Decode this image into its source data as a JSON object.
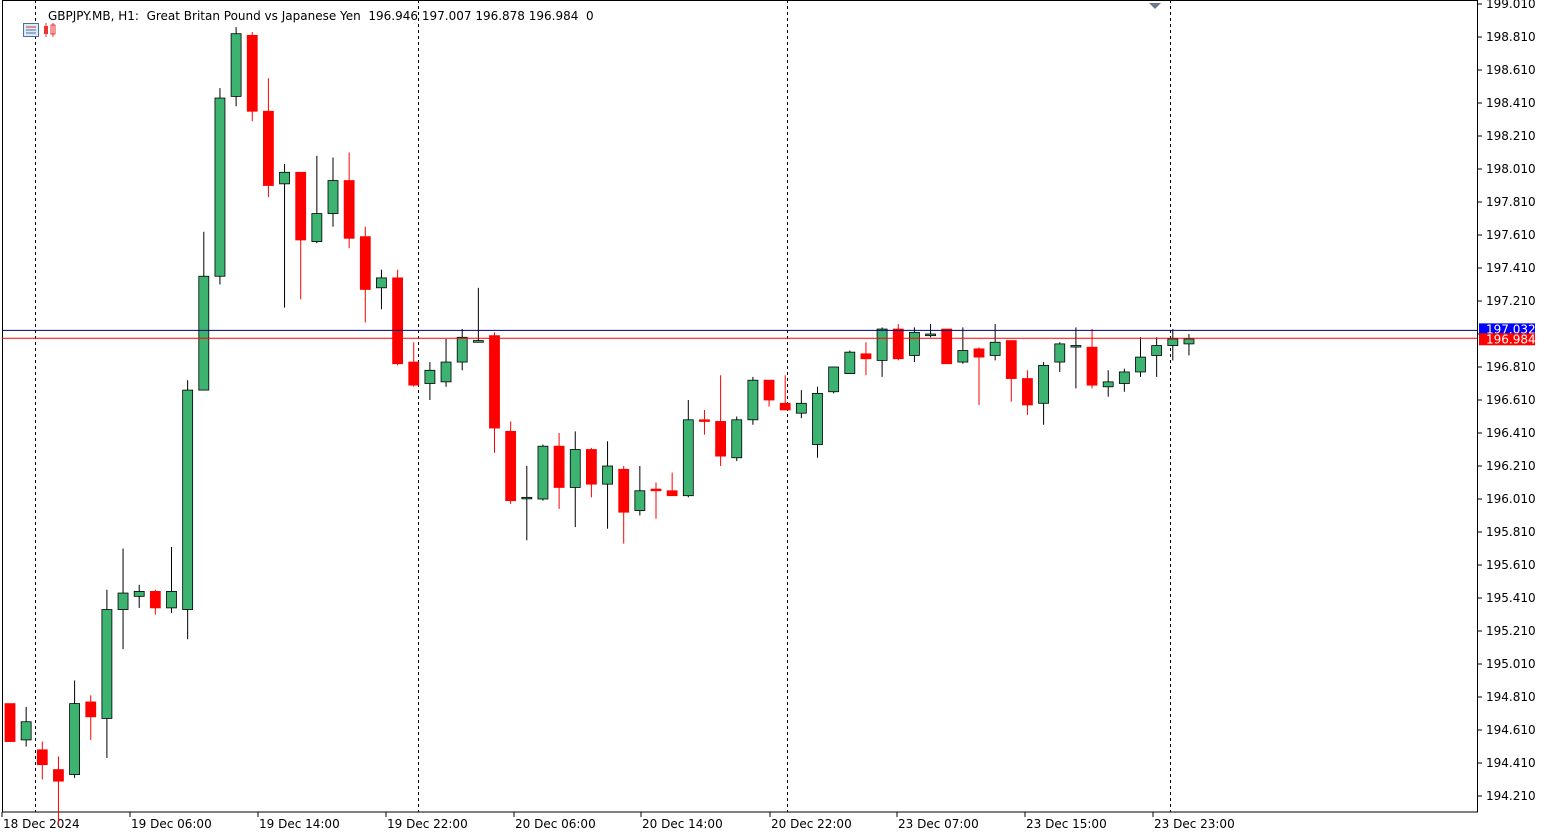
{
  "header": {
    "symbol": "GBPJPY.MB",
    "timeframe": "H1:",
    "description": "Great Britan Pound vs Japanese Yen",
    "open": "196.946",
    "high": "197.007",
    "low": "196.878",
    "close": "196.984",
    "volume": "0"
  },
  "price_labels": {
    "ask": "197.032",
    "bid": "196.984"
  },
  "colors": {
    "bull": "#3cb371",
    "bear": "#ff0000",
    "ask_line": "#0000ff",
    "bid_line": "#ff0000",
    "grid": "#000000"
  },
  "chart_data": {
    "type": "candlestick",
    "title": "GBPJPY.MB, H1: Great Britan Pound vs Japanese Yen",
    "ylim": [
      194.0,
      199.01
    ],
    "y_ticks": [
      "199.010",
      "198.810",
      "198.610",
      "198.410",
      "198.210",
      "198.010",
      "197.810",
      "197.610",
      "197.410",
      "197.210",
      "197.010",
      "196.810",
      "196.610",
      "196.410",
      "196.210",
      "196.010",
      "195.810",
      "195.610",
      "195.410",
      "195.210",
      "195.010",
      "194.810",
      "194.610",
      "194.410",
      "194.210"
    ],
    "x_labels": [
      "18 Dec 2024",
      "19 Dec 06:00",
      "19 Dec 14:00",
      "19 Dec 22:00",
      "20 Dec 06:00",
      "20 Dec 14:00",
      "20 Dec 22:00",
      "23 Dec 07:00",
      "23 Dec 15:00",
      "23 Dec 23:00"
    ],
    "ask": 197.032,
    "bid": 196.984,
    "ohlc": [
      [
        194.77,
        194.77,
        194.55,
        194.54
      ],
      [
        194.55,
        194.75,
        194.51,
        194.66
      ],
      [
        194.49,
        194.54,
        194.31,
        194.4
      ],
      [
        194.37,
        194.45,
        194.03,
        194.3
      ],
      [
        194.34,
        194.91,
        194.32,
        194.77
      ],
      [
        194.78,
        194.82,
        194.55,
        194.69
      ],
      [
        194.68,
        195.46,
        194.44,
        195.34
      ],
      [
        195.34,
        195.71,
        195.1,
        195.44
      ],
      [
        195.42,
        195.49,
        195.35,
        195.45
      ],
      [
        195.45,
        195.46,
        195.31,
        195.35
      ],
      [
        195.35,
        195.72,
        195.32,
        195.45
      ],
      [
        195.34,
        196.73,
        195.16,
        196.67
      ],
      [
        196.67,
        197.63,
        196.67,
        197.36
      ],
      [
        197.36,
        198.5,
        197.31,
        198.44
      ],
      [
        198.45,
        198.87,
        198.39,
        198.83
      ],
      [
        198.82,
        198.84,
        198.3,
        198.36
      ],
      [
        198.36,
        198.56,
        197.84,
        197.91
      ],
      [
        197.92,
        198.04,
        197.17,
        197.99
      ],
      [
        197.99,
        197.99,
        197.22,
        197.58
      ],
      [
        197.57,
        198.09,
        197.56,
        197.74
      ],
      [
        197.74,
        198.08,
        197.66,
        197.94
      ],
      [
        197.94,
        198.11,
        197.53,
        197.59
      ],
      [
        197.6,
        197.66,
        197.08,
        197.28
      ],
      [
        197.29,
        197.4,
        197.16,
        197.35
      ],
      [
        197.35,
        197.4,
        196.82,
        196.83
      ],
      [
        196.84,
        196.96,
        196.69,
        196.7
      ],
      [
        196.71,
        196.84,
        196.61,
        196.79
      ],
      [
        196.72,
        196.98,
        196.69,
        196.84
      ],
      [
        196.84,
        197.04,
        196.79,
        196.99
      ],
      [
        196.96,
        197.29,
        196.96,
        196.97
      ],
      [
        197.0,
        197.02,
        196.29,
        196.44
      ],
      [
        196.42,
        196.48,
        195.98,
        196.0
      ],
      [
        196.02,
        196.21,
        195.76,
        196.02
      ],
      [
        196.01,
        196.34,
        196.0,
        196.33
      ],
      [
        196.33,
        196.41,
        195.95,
        196.08
      ],
      [
        196.08,
        196.42,
        195.84,
        196.31
      ],
      [
        196.31,
        196.32,
        196.02,
        196.1
      ],
      [
        196.1,
        196.36,
        195.83,
        196.21
      ],
      [
        196.19,
        196.21,
        195.74,
        195.93
      ],
      [
        195.94,
        196.21,
        195.91,
        196.06
      ],
      [
        196.07,
        196.11,
        195.89,
        196.06
      ],
      [
        196.06,
        196.17,
        196.03,
        196.03
      ],
      [
        196.03,
        196.61,
        196.02,
        196.49
      ],
      [
        196.49,
        196.55,
        196.4,
        196.48
      ],
      [
        196.48,
        196.76,
        196.21,
        196.27
      ],
      [
        196.26,
        196.51,
        196.24,
        196.49
      ],
      [
        196.49,
        196.75,
        196.46,
        196.73
      ],
      [
        196.73,
        196.73,
        196.57,
        196.61
      ],
      [
        196.59,
        196.76,
        196.55,
        196.55
      ],
      [
        196.53,
        196.67,
        196.5,
        196.59
      ],
      [
        196.34,
        196.69,
        196.26,
        196.65
      ],
      [
        196.66,
        196.81,
        196.65,
        196.81
      ],
      [
        196.77,
        196.91,
        196.77,
        196.9
      ],
      [
        196.89,
        196.96,
        196.76,
        196.86
      ],
      [
        196.85,
        197.05,
        196.75,
        197.04
      ],
      [
        197.04,
        197.07,
        196.85,
        196.86
      ],
      [
        196.88,
        197.05,
        196.84,
        197.02
      ],
      [
        197.0,
        197.07,
        196.99,
        197.01
      ],
      [
        197.04,
        197.04,
        196.83,
        196.83
      ],
      [
        196.84,
        197.05,
        196.83,
        196.91
      ],
      [
        196.92,
        196.93,
        196.58,
        196.87
      ],
      [
        196.88,
        197.07,
        196.85,
        196.96
      ],
      [
        196.97,
        196.97,
        196.6,
        196.74
      ],
      [
        196.74,
        196.79,
        196.52,
        196.58
      ],
      [
        196.59,
        196.84,
        196.46,
        196.82
      ],
      [
        196.84,
        196.96,
        196.78,
        196.95
      ],
      [
        196.94,
        197.05,
        196.68,
        196.94
      ],
      [
        196.93,
        197.04,
        196.68,
        196.7
      ],
      [
        196.69,
        196.79,
        196.63,
        196.72
      ],
      [
        196.71,
        196.8,
        196.66,
        196.78
      ],
      [
        196.78,
        196.99,
        196.75,
        196.87
      ],
      [
        196.88,
        196.99,
        196.75,
        196.94
      ],
      [
        196.94,
        197.04,
        196.85,
        196.98
      ],
      [
        196.95,
        197.01,
        196.88,
        196.98
      ]
    ]
  }
}
